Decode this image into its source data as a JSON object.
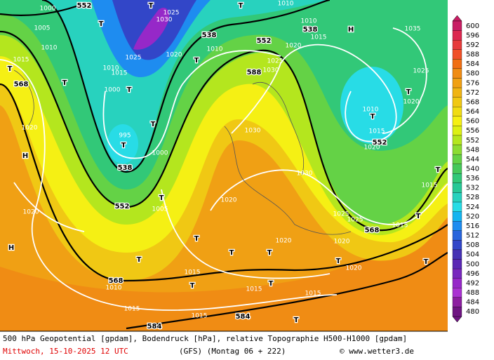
{
  "legend": {
    "levels": [
      {
        "value": 600,
        "color": "#c81e64"
      },
      {
        "value": 596,
        "color": "#dc2850"
      },
      {
        "value": 592,
        "color": "#e63c3c"
      },
      {
        "value": 588,
        "color": "#f05028"
      },
      {
        "value": 584,
        "color": "#f06e14"
      },
      {
        "value": 580,
        "color": "#f08c14"
      },
      {
        "value": 576,
        "color": "#f0a014"
      },
      {
        "value": 572,
        "color": "#f0b414"
      },
      {
        "value": 568,
        "color": "#f0c814"
      },
      {
        "value": 564,
        "color": "#f0dc14"
      },
      {
        "value": 560,
        "color": "#f5f014"
      },
      {
        "value": 556,
        "color": "#dcf014"
      },
      {
        "value": 552,
        "color": "#b4e61e"
      },
      {
        "value": 548,
        "color": "#8cdc32"
      },
      {
        "value": 544,
        "color": "#64d246"
      },
      {
        "value": 540,
        "color": "#46c85a"
      },
      {
        "value": 536,
        "color": "#32c878"
      },
      {
        "value": 532,
        "color": "#28c896"
      },
      {
        "value": 528,
        "color": "#28d2be"
      },
      {
        "value": 524,
        "color": "#28dce6"
      },
      {
        "value": 520,
        "color": "#14b4f0"
      },
      {
        "value": 516,
        "color": "#1e8cf0"
      },
      {
        "value": 512,
        "color": "#2864dc"
      },
      {
        "value": 508,
        "color": "#3246c8"
      },
      {
        "value": 504,
        "color": "#4632b4"
      },
      {
        "value": 500,
        "color": "#5a28b4"
      },
      {
        "value": 496,
        "color": "#7828be"
      },
      {
        "value": 492,
        "color": "#9628c8"
      },
      {
        "value": 488,
        "color": "#aa32d2"
      },
      {
        "value": 484,
        "color": "#8c1ea0"
      },
      {
        "value": 480,
        "color": "#6e1482"
      }
    ]
  },
  "map": {
    "labels": [
      "1000",
      "552",
      "1005",
      "1010",
      "1015",
      "T",
      "568",
      "T",
      "1020",
      "H",
      "1020",
      "H",
      "995",
      "T",
      "538",
      "T",
      "1000",
      "T",
      "1005",
      "552",
      "T",
      "568",
      "1010",
      "1015",
      "1015",
      "T",
      "1015",
      "T",
      "T",
      "T",
      "1015",
      "T",
      "584",
      "584",
      "T",
      "1015",
      "1020",
      "1020",
      "1020",
      "T",
      "1020",
      "568",
      "T",
      "1015",
      "T",
      "T",
      "1015",
      "1025",
      "1025",
      "1030",
      "1030",
      "588",
      "1030",
      "1025",
      "552",
      "1020",
      "538",
      "1015",
      "1010",
      "H",
      "1035",
      "1025",
      "T",
      "1020",
      "1010",
      "T",
      "1015",
      "552",
      "1020",
      "538",
      "T",
      "1010",
      "1020",
      "1025",
      "1015",
      "1010",
      "1000",
      "T",
      "T",
      "T",
      "1025",
      "1030",
      "T",
      "1010"
    ]
  },
  "caption": {
    "line1": "500 hPa Geopotential [gpdam], Bodendruck [hPa], relative Topographie H500-H1000 [gpdam]",
    "date": "Mittwoch, 15-10-2025  12 UTC",
    "run": "(GFS)  (Montag 06 + 222)",
    "credit": "© www.wetter3.de"
  }
}
